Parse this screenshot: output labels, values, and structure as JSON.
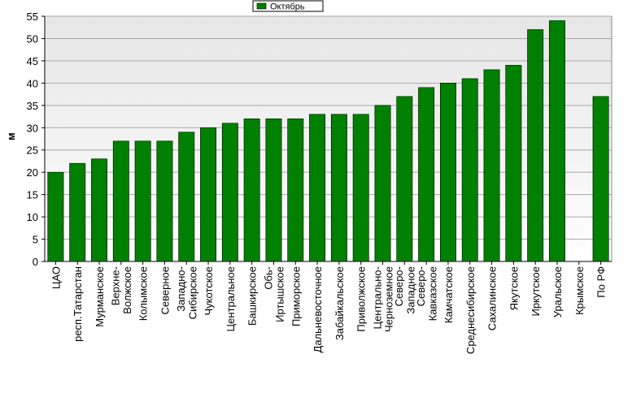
{
  "chart_data": {
    "type": "bar",
    "y_label": "м",
    "categories": [
      "ЦАО",
      "респ.Татарстан",
      "Мурманское",
      "Верхне-\nВолжское",
      "Колымское",
      "Северное",
      "Западно-\nСибирское",
      "Чукотское",
      "Центральное",
      "Башкирское",
      "Обь-\nИртышское",
      "Приморское",
      "Дальневосточное",
      "Забайкальское",
      "Приволжское",
      "Центрально-\nЧерноземное",
      "Северо-\nЗападное",
      "Северо-\nКавказское",
      "Камчатское",
      "Среднесибирское",
      "Сахалинское",
      "Якутское",
      "Иркутское",
      "Уральское",
      "Крымское",
      "По РФ"
    ],
    "series": [
      {
        "name": "Октябрь",
        "color": "#008000",
        "values": [
          20,
          22,
          23,
          27,
          27,
          27,
          29,
          30,
          31,
          32,
          32,
          32,
          33,
          33,
          33,
          35,
          37,
          39,
          40,
          41,
          43,
          44,
          52,
          54,
          null,
          37
        ]
      }
    ],
    "ylim": [
      0,
      55
    ],
    "yticks": [
      0,
      5,
      10,
      15,
      20,
      25,
      30,
      35,
      40,
      45,
      50,
      55
    ],
    "grid": true,
    "legend": "top"
  }
}
